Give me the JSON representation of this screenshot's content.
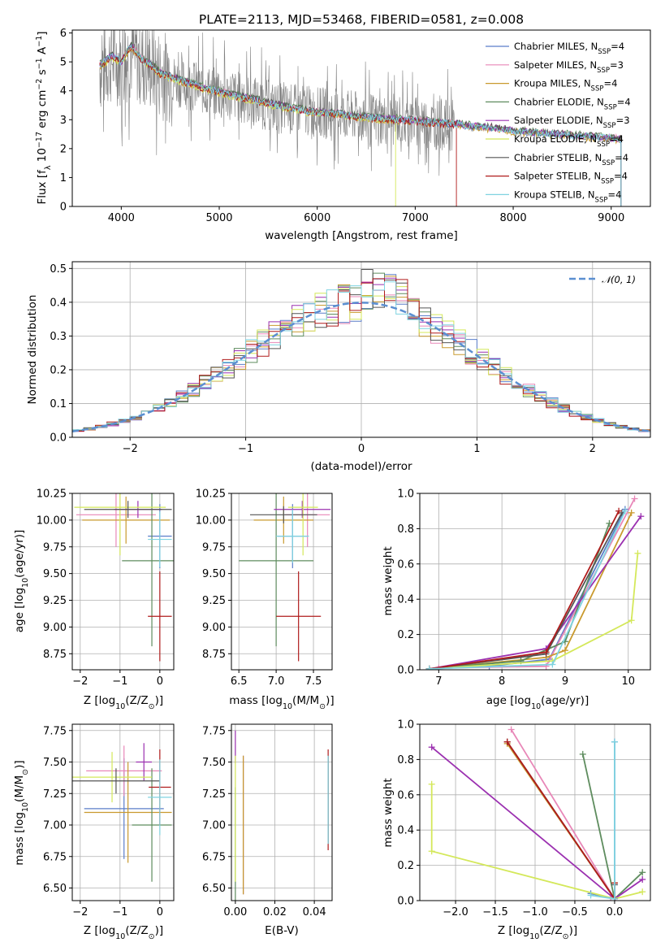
{
  "chart_data": [
    {
      "id": "spectrum",
      "type": "line",
      "title": "PLATE=2113, MJD=53468, FIBERID=0581, z=0.008",
      "xlabel": "wavelength [Angstrom, rest frame]",
      "ylabel": "Flux [f_λ 10^-17 erg cm^-2 s^-1 A^-1]",
      "xlim": [
        3500,
        9400
      ],
      "ylim": [
        0,
        6.1
      ],
      "xticks": [
        4000,
        5000,
        6000,
        7000,
        8000,
        9000
      ],
      "yticks": [
        0,
        1,
        2,
        3,
        4,
        5,
        6
      ],
      "grid": false,
      "legend_position": "top-right",
      "observed_color": "#808080",
      "observed_x": [
        3800,
        3900,
        4000,
        4100,
        4200,
        4400,
        4600,
        4800,
        5000,
        5200,
        5400,
        5600,
        5800,
        6000,
        6200,
        6400,
        6600,
        6800,
        7000,
        7200,
        7400,
        7600,
        7800,
        8000,
        8200,
        8400,
        8600,
        8800,
        9000,
        9100
      ],
      "observed_y": [
        4.8,
        5.1,
        5.0,
        5.3,
        5.0,
        4.6,
        4.3,
        4.1,
        3.9,
        3.8,
        3.6,
        3.4,
        3.35,
        3.25,
        3.2,
        3.1,
        3.0,
        3.0,
        2.95,
        2.85,
        2.8,
        2.75,
        2.7,
        2.6,
        2.55,
        2.5,
        2.45,
        2.4,
        2.3,
        2.3
      ],
      "model_x": [
        3800,
        3900,
        4000,
        4100,
        4200,
        4300,
        4400,
        4600,
        4800,
        5000,
        5200,
        5400,
        5600,
        5800,
        6000,
        6200,
        6400,
        6600,
        6800,
        7000,
        7200,
        7400,
        7600,
        7800,
        8000,
        8200,
        8400,
        8600,
        8800,
        9000,
        9100
      ],
      "model_y": [
        4.9,
        5.2,
        5.0,
        5.55,
        5.1,
        4.9,
        4.6,
        4.35,
        4.15,
        3.95,
        3.8,
        3.65,
        3.5,
        3.35,
        3.25,
        3.2,
        3.1,
        3.05,
        3.0,
        2.95,
        2.9,
        2.85,
        2.75,
        2.7,
        2.6,
        2.55,
        2.5,
        2.45,
        2.4,
        2.35,
        2.32
      ],
      "series": [
        {
          "name": "Chabrier MILES, N_SSP=4",
          "legend_main": "Chabrier MILES, N",
          "legend_sub": "SSP",
          "legend_end": "=4",
          "color": "#5b7ec9"
        },
        {
          "name": "Salpeter MILES, N_SSP=3",
          "legend_main": "Salpeter MILES, N",
          "legend_sub": "SSP",
          "legend_end": "=3",
          "color": "#e887b8"
        },
        {
          "name": "Kroupa MILES, N_SSP=4",
          "legend_main": "Kroupa MILES, N",
          "legend_sub": "SSP",
          "legend_end": "=4",
          "color": "#c99a2e"
        },
        {
          "name": "Chabrier ELODIE, N_SSP=4",
          "legend_main": "Chabrier ELODIE, N",
          "legend_sub": "SSP",
          "legend_end": "=4",
          "color": "#5e8c5e"
        },
        {
          "name": "Salpeter ELODIE, N_SSP=3",
          "legend_main": "Salpeter ELODIE, N",
          "legend_sub": "SSP",
          "legend_end": "=3",
          "color": "#9b30b0"
        },
        {
          "name": "Kroupa ELODIE, N_SSP=4",
          "legend_main": "Kroupa ELODIE, N",
          "legend_sub": "SSP",
          "legend_end": "=4",
          "color": "#d4e85a"
        },
        {
          "name": "Chabrier STELIB, N_SSP=4",
          "legend_main": "Chabrier STELIB, N",
          "legend_sub": "SSP",
          "legend_end": "=4",
          "color": "#555555"
        },
        {
          "name": "Salpeter STELIB, N_SSP=4",
          "legend_main": "Salpeter STELIB, N",
          "legend_sub": "SSP",
          "legend_end": "=4",
          "color": "#b01c1c"
        },
        {
          "name": "Kroupa STELIB, N_SSP=4",
          "legend_main": "Kroupa STELIB, N",
          "legend_sub": "SSP",
          "legend_end": "=4",
          "color": "#7fd3e0"
        }
      ],
      "model_offsets": [
        0,
        0.03,
        -0.03,
        0.06,
        0.02,
        -0.05,
        0.04,
        -0.02,
        0.01
      ],
      "model_ranges": [
        [
          3780,
          9100
        ],
        [
          3780,
          9100
        ],
        [
          3780,
          9100
        ],
        [
          3780,
          9100
        ],
        [
          3780,
          9100
        ],
        [
          3780,
          6800
        ],
        [
          3780,
          9100
        ],
        [
          3780,
          7420
        ],
        [
          3780,
          9100
        ]
      ]
    },
    {
      "id": "residuals",
      "type": "line",
      "xlabel": "(data-model)/error",
      "ylabel": "Normed distribution",
      "xlim": [
        -2.5,
        2.5
      ],
      "ylim": [
        0,
        0.52
      ],
      "xticks": [
        -2,
        -1,
        0,
        1,
        2
      ],
      "yticks": [
        0.0,
        0.1,
        0.2,
        0.3,
        0.4,
        0.5
      ],
      "grid": true,
      "legend_position": "top-right",
      "reference_label": "𝒩(0, 1)",
      "reference_color": "#5b8fd1",
      "bin_width": 0.1
    },
    {
      "id": "age-vs-z",
      "type": "scatter",
      "xlabel": "Z [log10(Z/Z⊙)]",
      "ylabel": "age [log10(age/yr)]",
      "xlim": [
        -2.2,
        0.35
      ],
      "ylim": [
        8.6,
        10.25
      ],
      "xticks": [
        -2,
        -1,
        0
      ],
      "yticks": [
        8.75,
        9.0,
        9.25,
        9.5,
        9.75,
        10.0,
        10.25
      ],
      "grid": true,
      "points": [
        {
          "color": "#5b7ec9",
          "x": 0.0,
          "y": 9.85,
          "xerr": 0.3,
          "yerr": 0.3
        },
        {
          "color": "#e887b8",
          "x": -1.1,
          "y": 10.05,
          "xerr": 1.0,
          "yerr": 0.3
        },
        {
          "color": "#c99a2e",
          "x": -0.85,
          "y": 10.0,
          "xerr": 1.1,
          "yerr": 0.22
        },
        {
          "color": "#5e8c5e",
          "x": -0.2,
          "y": 9.62,
          "xerr": 0.75,
          "yerr": 0.8
        },
        {
          "color": "#9b30b0",
          "x": -0.55,
          "y": 10.1,
          "xerr": 0.6,
          "yerr": 0.08
        },
        {
          "color": "#d4e85a",
          "x": -1.0,
          "y": 10.12,
          "xerr": 1.15,
          "yerr": 0.45
        },
        {
          "color": "#555555",
          "x": -0.8,
          "y": 10.1,
          "xerr": 1.1,
          "yerr": 0.08
        },
        {
          "color": "#b01c1c",
          "x": 0.0,
          "y": 9.1,
          "xerr": 0.3,
          "yerr": 0.42
        },
        {
          "color": "#7fd3e0",
          "x": 0.0,
          "y": 9.82,
          "xerr": 0.3,
          "yerr": 0.26
        }
      ]
    },
    {
      "id": "age-vs-mass",
      "type": "scatter",
      "xlabel": "mass [log10(M/M⊙)]",
      "ylabel": "",
      "xlim": [
        6.4,
        7.75
      ],
      "ylim": [
        8.6,
        10.25
      ],
      "xticks": [
        6.5,
        7.0,
        7.5
      ],
      "yticks": [
        8.75,
        9.0,
        9.25,
        9.5,
        9.75,
        10.0,
        10.25
      ],
      "grid": true,
      "points": [
        {
          "color": "#5b7ec9",
          "x": 7.22,
          "y": 9.85,
          "xerr": 0.2,
          "yerr": 0.3
        },
        {
          "color": "#e887b8",
          "x": 7.42,
          "y": 10.05,
          "xerr": 0.3,
          "yerr": 0.3
        },
        {
          "color": "#c99a2e",
          "x": 7.1,
          "y": 10.0,
          "xerr": 0.4,
          "yerr": 0.22
        },
        {
          "color": "#5e8c5e",
          "x": 7.0,
          "y": 9.62,
          "xerr": 0.5,
          "yerr": 0.8
        },
        {
          "color": "#9b30b0",
          "x": 7.35,
          "y": 10.1,
          "xerr": 0.38,
          "yerr": 0.08
        },
        {
          "color": "#d4e85a",
          "x": 7.36,
          "y": 10.12,
          "xerr": 0.2,
          "yerr": 0.45
        },
        {
          "color": "#555555",
          "x": 7.1,
          "y": 10.05,
          "xerr": 0.45,
          "yerr": 0.08
        },
        {
          "color": "#b01c1c",
          "x": 7.3,
          "y": 9.1,
          "xerr": 0.3,
          "yerr": 0.42
        },
        {
          "color": "#7fd3e0",
          "x": 7.22,
          "y": 9.85,
          "xerr": 0.22,
          "yerr": 0.25
        }
      ]
    },
    {
      "id": "weight-vs-age",
      "type": "line",
      "xlabel": "age [log10(age/yr)]",
      "ylabel": "mass weight",
      "xlim": [
        6.7,
        10.35
      ],
      "ylim": [
        0,
        1.0
      ],
      "xticks": [
        7,
        8,
        9,
        10
      ],
      "yticks": [
        0.0,
        0.2,
        0.4,
        0.6,
        0.8,
        1.0
      ],
      "grid": true,
      "series": [
        {
          "color": "#5b7ec9",
          "x": [
            6.85,
            7.8,
            8.75,
            9.95
          ],
          "y": [
            0.005,
            0.02,
            0.06,
            0.91
          ]
        },
        {
          "color": "#e887b8",
          "x": [
            7.0,
            8.7,
            10.1
          ],
          "y": [
            0.01,
            0.02,
            0.97
          ]
        },
        {
          "color": "#c99a2e",
          "x": [
            6.85,
            8.7,
            9.0,
            10.05
          ],
          "y": [
            0.005,
            0.07,
            0.11,
            0.89
          ]
        },
        {
          "color": "#5e8c5e",
          "x": [
            6.85,
            8.3,
            9.0,
            9.7
          ],
          "y": [
            0.005,
            0.05,
            0.16,
            0.83
          ]
        },
        {
          "color": "#9b30b0",
          "x": [
            6.85,
            8.7,
            10.2
          ],
          "y": [
            0.005,
            0.12,
            0.87
          ]
        },
        {
          "color": "#d4e85a",
          "x": [
            6.85,
            8.8,
            10.05,
            10.15
          ],
          "y": [
            0.005,
            0.05,
            0.28,
            0.66
          ]
        },
        {
          "color": "#555555",
          "x": [
            6.85,
            8.7,
            9.9
          ],
          "y": [
            0.005,
            0.09,
            0.89
          ]
        },
        {
          "color": "#b01c1c",
          "x": [
            6.85,
            8.7,
            9.85
          ],
          "y": [
            0.005,
            0.1,
            0.9
          ]
        },
        {
          "color": "#7fd3e0",
          "x": [
            6.85,
            8.8,
            9.95
          ],
          "y": [
            0.005,
            0.03,
            0.9
          ]
        }
      ]
    },
    {
      "id": "mass-vs-z",
      "type": "scatter",
      "xlabel": "Z [log10(Z/Z⊙)]",
      "ylabel": "mass [log10(M/M⊙)]",
      "xlim": [
        -2.2,
        0.35
      ],
      "ylim": [
        6.4,
        7.8
      ],
      "xticks": [
        -2,
        -1,
        0
      ],
      "yticks": [
        6.5,
        6.75,
        7.0,
        7.25,
        7.5,
        7.75
      ],
      "grid": true,
      "points": [
        {
          "color": "#5b7ec9",
          "x": -0.9,
          "y": 7.13,
          "xerr": 1.0,
          "yerr": 0.4
        },
        {
          "color": "#e887b8",
          "x": -0.9,
          "y": 7.43,
          "xerr": 0.95,
          "yerr": 0.2
        },
        {
          "color": "#c99a2e",
          "x": -0.8,
          "y": 7.1,
          "xerr": 1.1,
          "yerr": 0.4
        },
        {
          "color": "#5e8c5e",
          "x": -0.2,
          "y": 7.0,
          "xerr": 0.5,
          "yerr": 0.45
        },
        {
          "color": "#9b30b0",
          "x": -0.4,
          "y": 7.5,
          "xerr": 0.2,
          "yerr": 0.15
        },
        {
          "color": "#d4e85a",
          "x": -1.2,
          "y": 7.38,
          "xerr": 1.0,
          "yerr": 0.2
        },
        {
          "color": "#555555",
          "x": -1.1,
          "y": 7.35,
          "xerr": 1.1,
          "yerr": 0.1
        },
        {
          "color": "#b01c1c",
          "x": 0.0,
          "y": 7.3,
          "xerr": 0.28,
          "yerr": 0.3
        },
        {
          "color": "#7fd3e0",
          "x": 0.0,
          "y": 7.22,
          "xerr": 0.3,
          "yerr": 0.3
        }
      ]
    },
    {
      "id": "mass-vs-ebv",
      "type": "scatter",
      "xlabel": "E(B-V)",
      "ylabel": "",
      "xlim": [
        -0.002,
        0.049
      ],
      "ylim": [
        6.4,
        7.8
      ],
      "xticks": [
        0.0,
        0.02,
        0.04
      ],
      "yticks": [
        6.5,
        6.75,
        7.0,
        7.25,
        7.5,
        7.75
      ],
      "grid": true,
      "points": [
        {
          "color": "#5b7ec9",
          "x": 0.004,
          "y": 7.0,
          "xerr": 0,
          "yerr": 0.55
        },
        {
          "color": "#e887b8",
          "x": 0.004,
          "y": 7.0,
          "xerr": 0,
          "yerr": 0.55
        },
        {
          "color": "#c99a2e",
          "x": 0.004,
          "y": 7.0,
          "xerr": 0,
          "yerr": 0.55
        },
        {
          "color": "#5e8c5e",
          "x": 0.0,
          "y": 6.85,
          "xerr": 0,
          "yerr": 0.45
        },
        {
          "color": "#9b30b0",
          "x": 0.0,
          "y": 7.62,
          "xerr": 0,
          "yerr": 0.13
        },
        {
          "color": "#d4e85a",
          "x": 0.0,
          "y": 7.05,
          "xerr": 0,
          "yerr": 0.5
        },
        {
          "color": "#555555",
          "x": 0.047,
          "y": 7.2,
          "xerr": 0,
          "yerr": 0.35
        },
        {
          "color": "#b01c1c",
          "x": 0.047,
          "y": 7.2,
          "xerr": 0,
          "yerr": 0.4
        },
        {
          "color": "#7fd3e0",
          "x": 0.047,
          "y": 7.2,
          "xerr": 0,
          "yerr": 0.35
        }
      ]
    },
    {
      "id": "weight-vs-z",
      "type": "line",
      "xlabel": "Z [log10(Z/Z⊙)]",
      "ylabel": "mass weight",
      "xlim": [
        -2.45,
        0.45
      ],
      "ylim": [
        0,
        1.0
      ],
      "xticks": [
        -2.0,
        -1.5,
        -1.0,
        -0.5,
        0.0
      ],
      "yticks": [
        0.0,
        0.2,
        0.4,
        0.6,
        0.8,
        1.0
      ],
      "grid": true,
      "series": [
        {
          "color": "#5b7ec9",
          "x": [
            -0.3,
            0.0,
            0.0
          ],
          "y": [
            0.04,
            0.01,
            0.9
          ]
        },
        {
          "color": "#e887b8",
          "x": [
            -1.3,
            0.0,
            -0.05
          ],
          "y": [
            0.97,
            0.01,
            0.02
          ]
        },
        {
          "color": "#c99a2e",
          "x": [
            -1.35,
            0.0,
            0.0
          ],
          "y": [
            0.89,
            0.01,
            0.1
          ]
        },
        {
          "color": "#5e8c5e",
          "x": [
            -0.4,
            0.0,
            0.35
          ],
          "y": [
            0.83,
            0.01,
            0.16
          ]
        },
        {
          "color": "#9b30b0",
          "x": [
            -2.3,
            0.0,
            0.35
          ],
          "y": [
            0.87,
            0.01,
            0.12
          ]
        },
        {
          "color": "#d4e85a",
          "x": [
            -2.3,
            -2.3,
            0.0,
            0.35
          ],
          "y": [
            0.66,
            0.28,
            0.01,
            0.05
          ]
        },
        {
          "color": "#555555",
          "x": [
            -1.35,
            0.0,
            0.0
          ],
          "y": [
            0.9,
            0.01,
            0.09
          ]
        },
        {
          "color": "#b01c1c",
          "x": [
            -1.35,
            0.0,
            0.0
          ],
          "y": [
            0.9,
            0.01,
            0.1
          ]
        },
        {
          "color": "#7fd3e0",
          "x": [
            -0.3,
            0.0,
            0.0
          ],
          "y": [
            0.03,
            0.01,
            0.9
          ]
        }
      ]
    }
  ]
}
